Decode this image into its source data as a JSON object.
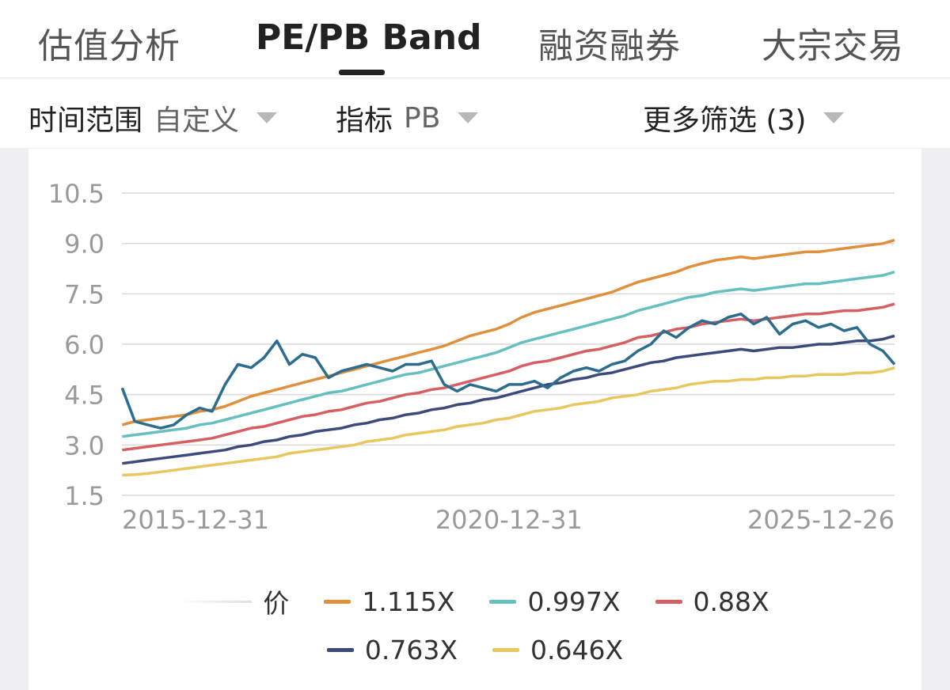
{
  "tabs": [
    {
      "label": "估值分析",
      "active": false
    },
    {
      "label": "PE/PB Band",
      "active": true
    },
    {
      "label": "融资融券",
      "active": false
    },
    {
      "label": "大宗交易",
      "active": false
    }
  ],
  "filters": {
    "time_range": {
      "label": "时间范围",
      "value": "自定义"
    },
    "indicator": {
      "label": "指标",
      "value": "PB"
    },
    "more": {
      "label": "更多筛选 (3)"
    }
  },
  "chart_data": {
    "type": "line",
    "y_ticks": [
      "10.5",
      "9.0",
      "7.5",
      "6.0",
      "4.5",
      "3.0",
      "1.5"
    ],
    "ylim": [
      1.5,
      10.5
    ],
    "x_ticks": [
      "2015-12-31",
      "2020-12-31",
      "2025-12-26"
    ],
    "grid": true,
    "legend_position": "bottom",
    "price_series": {
      "name": "价",
      "color": "#2b6c8f",
      "x": [
        "2016-01-01",
        "2016-03-01",
        "2016-05-01",
        "2016-07-01",
        "2016-09-01",
        "2016-11-01",
        "2017-01-01",
        "2017-03-01",
        "2017-05-01",
        "2017-07-01",
        "2017-09-01",
        "2017-11-01",
        "2018-01-01",
        "2018-03-01",
        "2018-05-01",
        "2018-07-01",
        "2018-09-01",
        "2018-11-01",
        "2019-01-01",
        "2019-03-01",
        "2019-05-01",
        "2019-07-01",
        "2019-09-01",
        "2019-11-01",
        "2020-01-01",
        "2020-03-01",
        "2020-05-01",
        "2020-07-01",
        "2020-09-01",
        "2020-11-01",
        "2021-01-01",
        "2021-03-01",
        "2021-05-01",
        "2021-07-01",
        "2021-09-01",
        "2021-11-01",
        "2022-01-01",
        "2022-03-01",
        "2022-05-01",
        "2022-07-01",
        "2022-09-01",
        "2022-11-01",
        "2023-01-01",
        "2023-03-01",
        "2023-05-01",
        "2023-07-01",
        "2023-09-01",
        "2023-11-01",
        "2024-01-01",
        "2024-03-01",
        "2024-05-01",
        "2024-07-01",
        "2024-09-01",
        "2024-11-01",
        "2025-01-01",
        "2025-03-01",
        "2025-05-01",
        "2025-07-01",
        "2025-09-01",
        "2025-11-01",
        "2025-12-26"
      ],
      "values": [
        4.7,
        3.7,
        3.6,
        3.5,
        3.6,
        3.9,
        4.1,
        4.0,
        4.8,
        5.4,
        5.3,
        5.6,
        6.1,
        5.4,
        5.7,
        5.6,
        5.0,
        5.2,
        5.3,
        5.4,
        5.3,
        5.2,
        5.4,
        5.4,
        5.5,
        4.8,
        4.6,
        4.8,
        4.7,
        4.6,
        4.8,
        4.8,
        4.9,
        4.7,
        5.0,
        5.2,
        5.3,
        5.2,
        5.4,
        5.5,
        5.8,
        6.0,
        6.4,
        6.2,
        6.5,
        6.7,
        6.6,
        6.8,
        6.9,
        6.6,
        6.8,
        6.3,
        6.6,
        6.7,
        6.5,
        6.6,
        6.4,
        6.5,
        6.0,
        5.8,
        5.4
      ]
    },
    "bands": [
      {
        "name": "1.115X",
        "color": "#e0903a",
        "values": [
          3.6,
          3.7,
          3.75,
          3.8,
          3.85,
          3.9,
          4.0,
          4.05,
          4.15,
          4.3,
          4.45,
          4.55,
          4.65,
          4.75,
          4.85,
          4.95,
          5.05,
          5.15,
          5.25,
          5.35,
          5.45,
          5.55,
          5.65,
          5.75,
          5.85,
          5.95,
          6.1,
          6.25,
          6.35,
          6.45,
          6.6,
          6.8,
          6.95,
          7.05,
          7.15,
          7.25,
          7.35,
          7.45,
          7.55,
          7.7,
          7.85,
          7.95,
          8.05,
          8.15,
          8.3,
          8.4,
          8.5,
          8.55,
          8.6,
          8.55,
          8.6,
          8.65,
          8.7,
          8.75,
          8.75,
          8.8,
          8.85,
          8.9,
          8.95,
          9.0,
          9.1
        ]
      },
      {
        "name": "0.997X",
        "color": "#66bfc0",
        "values": [
          3.25,
          3.3,
          3.35,
          3.4,
          3.45,
          3.5,
          3.6,
          3.65,
          3.75,
          3.85,
          3.95,
          4.05,
          4.15,
          4.25,
          4.35,
          4.45,
          4.55,
          4.6,
          4.7,
          4.8,
          4.9,
          5.0,
          5.1,
          5.15,
          5.25,
          5.35,
          5.45,
          5.55,
          5.65,
          5.75,
          5.9,
          6.05,
          6.15,
          6.25,
          6.35,
          6.45,
          6.55,
          6.65,
          6.75,
          6.85,
          7.0,
          7.1,
          7.2,
          7.3,
          7.4,
          7.45,
          7.55,
          7.6,
          7.65,
          7.6,
          7.65,
          7.7,
          7.75,
          7.8,
          7.8,
          7.85,
          7.9,
          7.95,
          8.0,
          8.05,
          8.15
        ]
      },
      {
        "name": "0.88X",
        "color": "#d65f64",
        "values": [
          2.85,
          2.9,
          2.95,
          3.0,
          3.05,
          3.1,
          3.15,
          3.2,
          3.3,
          3.4,
          3.5,
          3.55,
          3.65,
          3.75,
          3.85,
          3.9,
          4.0,
          4.05,
          4.15,
          4.25,
          4.3,
          4.4,
          4.5,
          4.55,
          4.65,
          4.7,
          4.8,
          4.9,
          5.0,
          5.1,
          5.2,
          5.35,
          5.45,
          5.5,
          5.6,
          5.7,
          5.8,
          5.85,
          5.95,
          6.05,
          6.2,
          6.25,
          6.35,
          6.45,
          6.5,
          6.6,
          6.65,
          6.7,
          6.75,
          6.7,
          6.75,
          6.8,
          6.85,
          6.9,
          6.9,
          6.95,
          7.0,
          7.0,
          7.05,
          7.1,
          7.2
        ]
      },
      {
        "name": "0.763X",
        "color": "#3d4b7c",
        "values": [
          2.45,
          2.5,
          2.55,
          2.6,
          2.65,
          2.7,
          2.75,
          2.8,
          2.85,
          2.95,
          3.0,
          3.1,
          3.15,
          3.25,
          3.3,
          3.4,
          3.45,
          3.5,
          3.6,
          3.65,
          3.75,
          3.8,
          3.9,
          3.95,
          4.05,
          4.1,
          4.2,
          4.25,
          4.35,
          4.4,
          4.5,
          4.6,
          4.7,
          4.8,
          4.85,
          4.95,
          5.0,
          5.1,
          5.15,
          5.25,
          5.35,
          5.45,
          5.5,
          5.6,
          5.65,
          5.7,
          5.75,
          5.8,
          5.85,
          5.8,
          5.85,
          5.9,
          5.9,
          5.95,
          6.0,
          6.0,
          6.05,
          6.1,
          6.1,
          6.15,
          6.25
        ]
      },
      {
        "name": "0.646X",
        "color": "#e8c85e",
        "values": [
          2.1,
          2.12,
          2.15,
          2.2,
          2.25,
          2.3,
          2.35,
          2.4,
          2.45,
          2.5,
          2.55,
          2.6,
          2.65,
          2.75,
          2.8,
          2.85,
          2.9,
          2.95,
          3.0,
          3.1,
          3.15,
          3.2,
          3.3,
          3.35,
          3.4,
          3.45,
          3.55,
          3.6,
          3.65,
          3.75,
          3.8,
          3.9,
          4.0,
          4.05,
          4.1,
          4.2,
          4.25,
          4.3,
          4.4,
          4.45,
          4.5,
          4.6,
          4.65,
          4.7,
          4.8,
          4.85,
          4.9,
          4.9,
          4.95,
          4.95,
          5.0,
          5.0,
          5.05,
          5.05,
          5.1,
          5.1,
          5.1,
          5.15,
          5.15,
          5.2,
          5.3
        ]
      }
    ]
  }
}
